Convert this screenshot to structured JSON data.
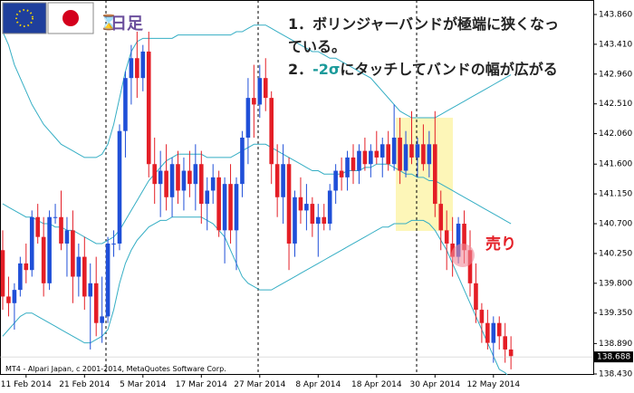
{
  "chart_data": {
    "type": "candlestick",
    "period_label": "日足",
    "annotation_1": [
      "1．ボリンジャーバンドが極端に狭くなっ",
      "ている。"
    ],
    "annotation_2": {
      "prefix": "2．",
      "highlight": "-2σ",
      "suffix": "にタッチしてバンドの幅が広がる"
    },
    "signal_label": "売り",
    "footer": "MT4 - Alpari Japan, c 2001-2014, MetaQuotes Software Corp.",
    "current_price": 138.688,
    "up_color": "#1f4fd8",
    "down_color": "#e41e26",
    "band_color": "#35aec4",
    "ylim": [
      138.43,
      143.86
    ],
    "yticks": [
      {
        "value": 138.43,
        "label": "138.430"
      },
      {
        "value": 138.89,
        "label": "138.890"
      },
      {
        "value": 139.35,
        "label": "139.350"
      },
      {
        "value": 139.8,
        "label": "139.800"
      },
      {
        "value": 140.25,
        "label": "140.250"
      },
      {
        "value": 140.7,
        "label": "140.700"
      },
      {
        "value": 141.15,
        "label": "141.150"
      },
      {
        "value": 141.6,
        "label": "141.600"
      },
      {
        "value": 142.06,
        "label": "142.060"
      },
      {
        "value": 142.51,
        "label": "142.510"
      },
      {
        "value": 142.96,
        "label": "142.960"
      },
      {
        "value": 143.41,
        "label": "143.410"
      },
      {
        "value": 143.86,
        "label": "143.860"
      }
    ],
    "categories": [
      null,
      null,
      null,
      null,
      "11 Feb 2014",
      null,
      null,
      null,
      null,
      null,
      null,
      null,
      null,
      null,
      "21 Feb 2014",
      null,
      null,
      null,
      null,
      null,
      null,
      null,
      null,
      null,
      "5 Mar 2014",
      null,
      null,
      null,
      null,
      null,
      null,
      null,
      null,
      null,
      "17 Mar 2014",
      null,
      null,
      null,
      null,
      null,
      null,
      null,
      null,
      null,
      "27 Mar 2014",
      null,
      null,
      null,
      null,
      null,
      null,
      null,
      null,
      null,
      "8 Apr 2014",
      null,
      null,
      null,
      null,
      null,
      null,
      null,
      null,
      null,
      "18 Apr 2014",
      null,
      null,
      null,
      null,
      null,
      null,
      null,
      null,
      null,
      "30 Apr 2014",
      null,
      null,
      null,
      null,
      null,
      null,
      null,
      null,
      null,
      "12 May 2014",
      null,
      null,
      null
    ],
    "open": [
      140.3,
      139.6,
      139.5,
      139.7,
      140.1,
      140.0,
      140.8,
      140.5,
      139.8,
      140.8,
      140.8,
      140.4,
      140.6,
      139.9,
      140.2,
      139.6,
      139.8,
      139.2,
      139.3,
      140.4,
      140.4,
      142.1,
      142.9,
      143.2,
      142.9,
      143.3,
      141.6,
      141.3,
      141.5,
      141.1,
      141.6,
      141.2,
      141.5,
      141.3,
      141.6,
      141.0,
      141.2,
      141.4,
      140.6,
      141.3,
      140.6,
      141.3,
      142.0,
      142.6,
      142.5,
      142.9,
      142.6,
      141.6,
      141.1,
      141.6,
      140.4,
      141.1,
      140.9,
      141.0,
      140.7,
      140.8,
      140.7,
      141.2,
      141.5,
      141.4,
      141.7,
      141.5,
      141.8,
      141.6,
      141.8,
      141.7,
      141.9,
      141.6,
      142.0,
      141.5,
      141.9,
      141.7,
      141.9,
      141.6,
      141.9,
      141.0,
      140.6,
      140.4,
      140.2,
      140.7,
      140.3,
      139.8,
      139.4,
      139.2,
      138.9,
      139.2,
      139.0,
      138.8
    ],
    "high": [
      140.6,
      139.9,
      139.8,
      140.2,
      140.4,
      140.9,
      141.0,
      140.8,
      140.9,
      141.0,
      141.2,
      140.8,
      140.9,
      140.4,
      140.5,
      140.1,
      140.2,
      139.9,
      140.5,
      140.6,
      142.2,
      143.0,
      143.4,
      143.6,
      143.4,
      143.6,
      142.0,
      141.8,
      141.9,
      141.7,
      141.8,
      141.7,
      141.8,
      141.9,
      141.8,
      141.4,
      141.6,
      141.5,
      141.4,
      141.6,
      141.4,
      142.1,
      142.9,
      143.1,
      143.1,
      143.2,
      142.7,
      141.9,
      141.9,
      141.7,
      141.2,
      141.4,
      141.3,
      141.1,
      141.0,
      141.0,
      141.3,
      141.6,
      141.7,
      141.8,
      141.9,
      141.9,
      142.0,
      141.9,
      142.1,
      142.0,
      142.1,
      142.5,
      142.3,
      142.1,
      142.4,
      142.0,
      142.2,
      142.1,
      142.4,
      141.2,
      140.9,
      140.8,
      140.8,
      140.9,
      140.6,
      140.1,
      139.5,
      139.4,
      139.3,
      139.3,
      139.2,
      139.0
    ],
    "low": [
      139.4,
      139.3,
      139.1,
      139.6,
      139.8,
      139.9,
      140.4,
      139.6,
      139.7,
      140.7,
      140.3,
      139.9,
      139.5,
      139.6,
      139.4,
      138.8,
      139.0,
      138.9,
      139.2,
      140.2,
      140.3,
      141.7,
      142.5,
      142.6,
      142.7,
      141.4,
      141.0,
      140.8,
      140.9,
      140.8,
      141.0,
      140.9,
      141.1,
      140.9,
      140.7,
      140.6,
      141.0,
      140.5,
      140.1,
      140.4,
      140.0,
      141.1,
      141.6,
      142.0,
      142.3,
      142.4,
      141.3,
      140.8,
      140.7,
      140.0,
      140.2,
      140.7,
      140.6,
      140.5,
      140.2,
      140.6,
      140.6,
      141.0,
      141.2,
      141.2,
      141.3,
      141.3,
      141.5,
      141.4,
      141.6,
      141.4,
      141.5,
      141.5,
      141.3,
      141.4,
      141.6,
      141.4,
      141.5,
      141.4,
      140.8,
      140.3,
      140.0,
      139.9,
      140.1,
      140.1,
      139.6,
      139.2,
      138.9,
      138.8,
      138.6,
      138.8,
      138.6,
      138.5
    ],
    "close": [
      139.6,
      139.5,
      139.7,
      140.1,
      140.0,
      140.8,
      140.5,
      139.8,
      140.8,
      140.8,
      140.4,
      140.6,
      139.9,
      140.2,
      139.6,
      139.8,
      139.2,
      139.3,
      140.4,
      140.4,
      142.1,
      142.9,
      143.2,
      142.9,
      143.3,
      141.6,
      141.3,
      141.5,
      141.1,
      141.6,
      141.2,
      141.5,
      141.3,
      141.6,
      141.0,
      141.2,
      141.4,
      140.6,
      141.3,
      140.6,
      141.3,
      142.0,
      142.6,
      142.5,
      142.9,
      142.6,
      141.6,
      141.1,
      141.6,
      140.4,
      141.1,
      140.9,
      141.0,
      140.7,
      140.8,
      140.7,
      141.2,
      141.5,
      141.4,
      141.7,
      141.5,
      141.8,
      141.6,
      141.8,
      141.7,
      141.9,
      141.6,
      142.0,
      141.5,
      141.9,
      141.7,
      141.9,
      141.6,
      141.9,
      141.0,
      140.6,
      140.4,
      140.2,
      140.7,
      140.3,
      139.8,
      139.4,
      139.2,
      138.9,
      139.2,
      139.0,
      138.8,
      138.7
    ],
    "bands": [
      {
        "values": [
          143.6,
          143.4,
          143.1,
          142.9,
          142.7,
          142.5,
          142.35,
          142.2,
          142.1,
          142.0,
          141.9,
          141.85,
          141.8,
          141.75,
          141.7,
          141.7,
          141.7,
          141.75,
          141.9,
          142.2,
          142.6,
          143.0,
          143.3,
          143.45,
          143.5,
          143.5,
          143.5,
          143.5,
          143.5,
          143.5,
          143.55,
          143.55,
          143.55,
          143.55,
          143.55,
          143.55,
          143.55,
          143.55,
          143.55,
          143.55,
          143.6,
          143.6,
          143.65,
          143.7,
          143.7,
          143.7,
          143.65,
          143.6,
          143.55,
          143.5,
          143.45,
          143.4,
          143.35,
          143.3,
          143.3,
          143.25,
          143.2,
          143.2,
          143.15,
          143.1,
          143.05,
          143.0,
          142.95,
          142.9,
          142.8,
          142.7,
          142.6,
          142.5,
          142.4,
          142.35,
          142.3,
          142.3,
          142.3,
          142.3,
          142.3,
          142.35,
          142.4,
          142.45,
          142.5,
          142.55,
          142.6,
          142.65,
          142.7,
          142.75,
          142.8,
          142.85,
          142.9,
          142.95
        ]
      },
      {
        "values": [
          141.0,
          140.95,
          140.9,
          140.85,
          140.8,
          140.8,
          140.75,
          140.7,
          140.7,
          140.65,
          140.65,
          140.6,
          140.6,
          140.55,
          140.5,
          140.45,
          140.4,
          140.4,
          140.45,
          140.5,
          140.6,
          140.75,
          140.9,
          141.05,
          141.2,
          141.35,
          141.45,
          141.55,
          141.65,
          141.7,
          141.75,
          141.75,
          141.75,
          141.75,
          141.75,
          141.7,
          141.7,
          141.7,
          141.7,
          141.7,
          141.75,
          141.8,
          141.85,
          141.9,
          141.9,
          141.9,
          141.85,
          141.8,
          141.75,
          141.7,
          141.65,
          141.6,
          141.55,
          141.5,
          141.5,
          141.45,
          141.45,
          141.45,
          141.45,
          141.5,
          141.5,
          141.5,
          141.55,
          141.55,
          141.6,
          141.6,
          141.6,
          141.55,
          141.5,
          141.45,
          141.45,
          141.4,
          141.4,
          141.35,
          141.35,
          141.3,
          141.25,
          141.2,
          141.15,
          141.1,
          141.05,
          141.0,
          140.95,
          140.9,
          140.85,
          140.8,
          140.75,
          140.7
        ]
      },
      {
        "values": [
          139.0,
          139.1,
          139.2,
          139.3,
          139.35,
          139.35,
          139.3,
          139.25,
          139.2,
          139.15,
          139.1,
          139.05,
          139.0,
          138.95,
          138.9,
          138.9,
          138.95,
          139.0,
          139.1,
          139.4,
          139.8,
          140.1,
          140.3,
          140.45,
          140.55,
          140.65,
          140.7,
          140.75,
          140.75,
          140.8,
          140.8,
          140.8,
          140.8,
          140.8,
          140.8,
          140.75,
          140.7,
          140.6,
          140.5,
          140.3,
          140.1,
          139.9,
          139.8,
          139.75,
          139.7,
          139.7,
          139.7,
          139.75,
          139.8,
          139.85,
          139.9,
          139.95,
          140.0,
          140.05,
          140.1,
          140.15,
          140.2,
          140.25,
          140.3,
          140.35,
          140.4,
          140.45,
          140.5,
          140.55,
          140.6,
          140.65,
          140.65,
          140.7,
          140.7,
          140.7,
          140.75,
          140.75,
          140.75,
          140.7,
          140.6,
          140.45,
          140.3,
          140.1,
          139.9,
          139.7,
          139.5,
          139.3,
          139.1,
          138.9,
          138.7,
          138.5,
          138.45,
          138.35
        ]
      }
    ]
  }
}
